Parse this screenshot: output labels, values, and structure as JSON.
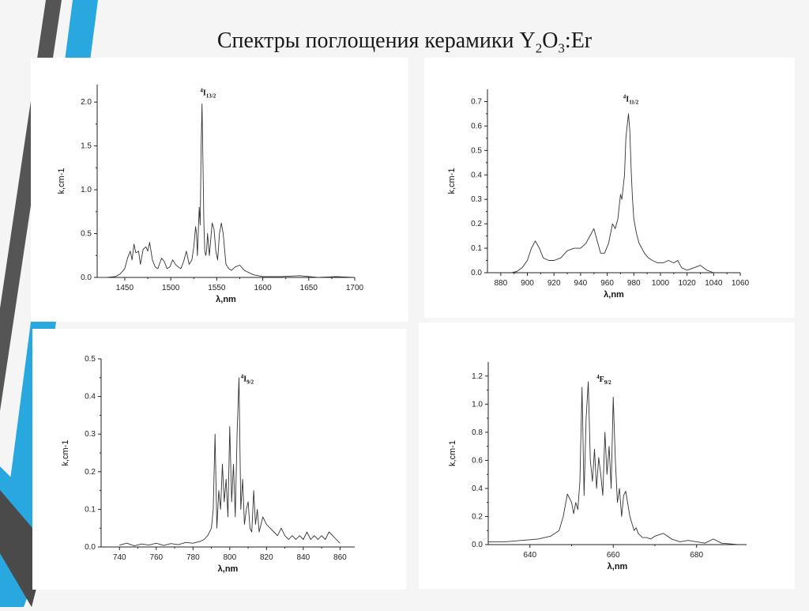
{
  "slide": {
    "title": {
      "main": "Спектры поглощения керамики Y",
      "sub1": "2",
      "mid": "O",
      "sub2": "3",
      "end": ":Er"
    },
    "colors": {
      "background": "#f5f5f5",
      "stripe_blue": "#29a8e0",
      "stripe_dark": "#4a4a4a",
      "line": "#333333"
    }
  },
  "chart_data": [
    {
      "type": "line",
      "xlabel": "λ,nm",
      "ylabel": "k,cm-1",
      "xlim": [
        1420,
        1700
      ],
      "ylim": [
        0,
        2.2
      ],
      "xticks": [
        1450,
        1500,
        1550,
        1600,
        1650,
        1700
      ],
      "yticks": [
        0.0,
        0.5,
        1.0,
        1.5,
        2.0
      ],
      "ytick_labels": [
        "0.0",
        "0.5",
        "1.0",
        "1.5",
        "2.0"
      ],
      "annotation": {
        "sup": "4",
        "letter": "I",
        "sub": "13/2",
        "x": 1532,
        "y": 2.08
      },
      "x": [
        1420,
        1430,
        1440,
        1445,
        1450,
        1453,
        1456,
        1458,
        1460,
        1462,
        1465,
        1467,
        1470,
        1473,
        1475,
        1477,
        1480,
        1483,
        1486,
        1490,
        1493,
        1496,
        1499,
        1502,
        1505,
        1508,
        1511,
        1514,
        1517,
        1520,
        1523,
        1525,
        1527,
        1528,
        1529,
        1530,
        1531,
        1532,
        1533,
        1534,
        1535,
        1536,
        1537,
        1538,
        1539,
        1540,
        1542,
        1545,
        1547,
        1549,
        1551,
        1553,
        1555,
        1557,
        1560,
        1563,
        1566,
        1570,
        1575,
        1580,
        1590,
        1600,
        1620,
        1640,
        1660,
        1680,
        1700
      ],
      "y": [
        0.0,
        0.0,
        0.01,
        0.04,
        0.1,
        0.22,
        0.3,
        0.2,
        0.38,
        0.28,
        0.3,
        0.15,
        0.32,
        0.35,
        0.3,
        0.4,
        0.2,
        0.12,
        0.1,
        0.22,
        0.18,
        0.1,
        0.12,
        0.2,
        0.15,
        0.12,
        0.1,
        0.18,
        0.3,
        0.15,
        0.2,
        0.35,
        0.58,
        0.5,
        0.25,
        0.55,
        0.8,
        0.6,
        1.5,
        1.98,
        1.3,
        0.6,
        0.3,
        0.25,
        0.3,
        0.5,
        0.25,
        0.62,
        0.55,
        0.3,
        0.2,
        0.5,
        0.62,
        0.5,
        0.15,
        0.1,
        0.08,
        0.12,
        0.14,
        0.08,
        0.03,
        0.01,
        0.01,
        0.02,
        0.0,
        0.01,
        0.0
      ]
    },
    {
      "type": "line",
      "xlabel": "λ,nm",
      "ylabel": "k,cm-1",
      "xlim": [
        870,
        1060
      ],
      "ylim": [
        0,
        0.75
      ],
      "xticks": [
        880,
        900,
        920,
        940,
        960,
        980,
        1000,
        1020,
        1040,
        1060
      ],
      "yticks": [
        0.0,
        0.1,
        0.2,
        0.3,
        0.4,
        0.5,
        0.6,
        0.7
      ],
      "ytick_labels": [
        "0.0",
        "0.1",
        "0.2",
        "0.3",
        "0.4",
        "0.5",
        "0.6",
        "0.7"
      ],
      "annotation": {
        "sup": "4",
        "letter": "I",
        "sub": "11/2",
        "x": 972,
        "y": 0.7
      },
      "x": [
        888,
        892,
        896,
        900,
        903,
        906,
        909,
        912,
        916,
        920,
        925,
        930,
        935,
        940,
        944,
        947,
        950,
        952,
        955,
        958,
        961,
        964,
        966,
        968,
        970,
        971,
        972,
        973,
        974,
        975,
        976,
        977,
        978,
        979,
        980,
        982,
        984,
        986,
        988,
        991,
        994,
        998,
        1002,
        1006,
        1010,
        1013,
        1016,
        1020,
        1025,
        1030,
        1035,
        1040
      ],
      "y": [
        0.0,
        0.005,
        0.02,
        0.05,
        0.1,
        0.13,
        0.1,
        0.06,
        0.05,
        0.05,
        0.06,
        0.09,
        0.1,
        0.1,
        0.12,
        0.15,
        0.18,
        0.14,
        0.08,
        0.08,
        0.12,
        0.2,
        0.18,
        0.22,
        0.32,
        0.3,
        0.35,
        0.4,
        0.55,
        0.6,
        0.65,
        0.58,
        0.42,
        0.3,
        0.22,
        0.16,
        0.12,
        0.1,
        0.08,
        0.06,
        0.05,
        0.04,
        0.04,
        0.05,
        0.04,
        0.05,
        0.02,
        0.01,
        0.02,
        0.03,
        0.01,
        0.0
      ]
    },
    {
      "type": "line",
      "xlabel": "λ,nm",
      "ylabel": "k,cm-1",
      "xlim": [
        730,
        868
      ],
      "ylim": [
        0,
        0.5
      ],
      "xticks": [
        740,
        760,
        780,
        800,
        820,
        840,
        860
      ],
      "yticks": [
        0.0,
        0.1,
        0.2,
        0.3,
        0.4,
        0.5
      ],
      "ytick_labels": [
        "0.0",
        "0.1",
        "0.2",
        "0.3",
        "0.4",
        "0.5"
      ],
      "annotation": {
        "sup": "4",
        "letter": "I",
        "sub": "9/2",
        "x": 806,
        "y": 0.44
      },
      "x": [
        740,
        744,
        748,
        752,
        756,
        760,
        764,
        768,
        772,
        776,
        780,
        784,
        786,
        788,
        790,
        791,
        792,
        793,
        794,
        795,
        796,
        797,
        798,
        799,
        800,
        801,
        802,
        803,
        804,
        805,
        806,
        807,
        808,
        809,
        810,
        811,
        812,
        813,
        814,
        815,
        816,
        818,
        820,
        822,
        824,
        826,
        828,
        830,
        832,
        834,
        836,
        838,
        840,
        842,
        844,
        846,
        848,
        850,
        852,
        854,
        856,
        858,
        860
      ],
      "y": [
        0.005,
        0.01,
        0.003,
        0.008,
        0.005,
        0.01,
        0.004,
        0.009,
        0.006,
        0.012,
        0.01,
        0.015,
        0.02,
        0.03,
        0.05,
        0.1,
        0.3,
        0.05,
        0.15,
        0.1,
        0.22,
        0.12,
        0.18,
        0.08,
        0.32,
        0.12,
        0.22,
        0.08,
        0.3,
        0.45,
        0.1,
        0.18,
        0.06,
        0.1,
        0.12,
        0.05,
        0.04,
        0.15,
        0.06,
        0.1,
        0.04,
        0.08,
        0.06,
        0.05,
        0.04,
        0.03,
        0.05,
        0.03,
        0.02,
        0.03,
        0.02,
        0.03,
        0.02,
        0.04,
        0.02,
        0.03,
        0.02,
        0.03,
        0.02,
        0.04,
        0.03,
        0.02,
        0.01
      ]
    },
    {
      "type": "line",
      "xlabel": "λ,nm",
      "ylabel": "k,cm-1",
      "xlim": [
        630,
        692
      ],
      "ylim": [
        0,
        1.3
      ],
      "xticks": [
        640,
        660,
        680
      ],
      "yticks": [
        0.0,
        0.2,
        0.4,
        0.6,
        0.8,
        1.0,
        1.2
      ],
      "ytick_labels": [
        "0.0",
        "0.2",
        "0.4",
        "0.6",
        "0.8",
        "1.0",
        "1.2"
      ],
      "annotation": {
        "sup": "4",
        "letter": "F",
        "sub": "9/2",
        "x": 656,
        "y": 1.16
      },
      "x": [
        630,
        634,
        638,
        642,
        645,
        647,
        648,
        649,
        650,
        650.5,
        651,
        651.5,
        652,
        652.5,
        653,
        653.5,
        654,
        654.5,
        655,
        655.5,
        656,
        656.5,
        657,
        657.5,
        658,
        658.5,
        659,
        659.5,
        660,
        660.5,
        661,
        661.5,
        662,
        662.5,
        663,
        664,
        665,
        665.5,
        666,
        667,
        668,
        669,
        670,
        672,
        674,
        676,
        678,
        680,
        682,
        684,
        686,
        688,
        690
      ],
      "y": [
        0.02,
        0.02,
        0.03,
        0.04,
        0.06,
        0.1,
        0.2,
        0.36,
        0.3,
        0.22,
        0.3,
        0.25,
        0.45,
        1.12,
        0.35,
        0.9,
        1.16,
        0.6,
        0.45,
        0.68,
        0.4,
        0.62,
        0.5,
        0.35,
        0.8,
        0.5,
        0.7,
        0.4,
        1.05,
        0.6,
        0.3,
        0.4,
        0.2,
        0.35,
        0.38,
        0.2,
        0.1,
        0.12,
        0.08,
        0.05,
        0.05,
        0.04,
        0.06,
        0.08,
        0.04,
        0.02,
        0.03,
        0.02,
        0.01,
        0.04,
        0.01,
        0.005,
        0.0
      ]
    }
  ]
}
